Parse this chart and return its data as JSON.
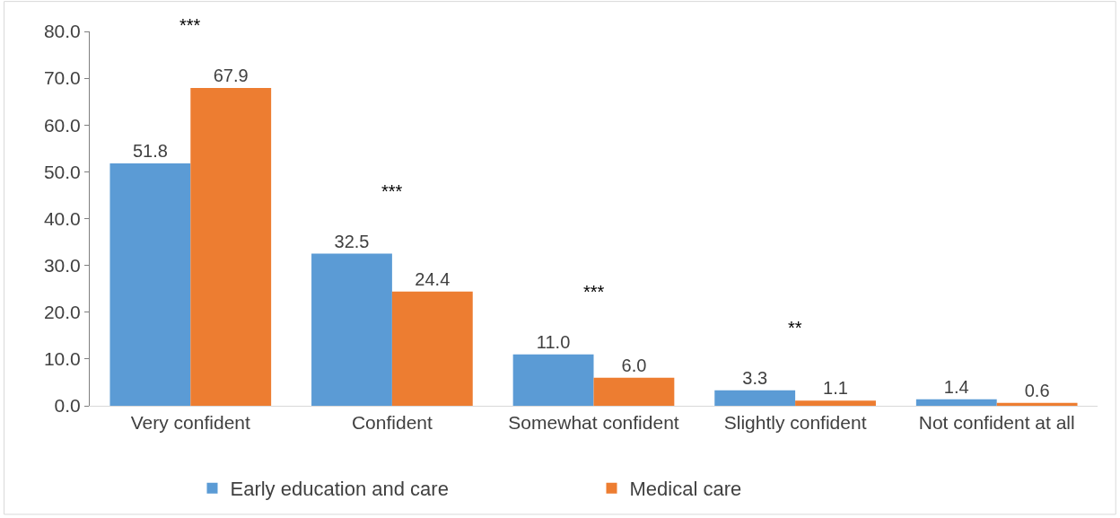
{
  "chart_data": {
    "type": "bar",
    "categories": [
      "Very confident",
      "Confident",
      "Somewhat confident",
      "Slightly confident",
      "Not confident at all"
    ],
    "series": [
      {
        "name": "Early education and care",
        "color": "#5b9bd5",
        "values": [
          51.8,
          32.5,
          11.0,
          3.3,
          1.4
        ],
        "value_labels": [
          "51.8",
          "32.5",
          "11.0",
          "3.3",
          "1.4"
        ]
      },
      {
        "name": "Medical care",
        "color": "#ed7d31",
        "values": [
          67.9,
          24.4,
          6.0,
          1.1,
          0.6
        ],
        "value_labels": [
          "67.9",
          "24.4",
          "6.0",
          "1.1",
          "0.6"
        ]
      }
    ],
    "ylim": [
      0,
      80
    ],
    "yticks": [
      {
        "value": 0,
        "label": "0.0"
      },
      {
        "value": 10,
        "label": "10.0"
      },
      {
        "value": 20,
        "label": "20.0"
      },
      {
        "value": 30,
        "label": "30.0"
      },
      {
        "value": 40,
        "label": "40.0"
      },
      {
        "value": 50,
        "label": "50.0"
      },
      {
        "value": 60,
        "label": "60.0"
      },
      {
        "value": 70,
        "label": "70.0"
      },
      {
        "value": 80,
        "label": "80.0"
      }
    ],
    "annotations": [
      "***",
      "***",
      "***",
      "**"
    ],
    "grid": false,
    "legend": "bottom"
  }
}
